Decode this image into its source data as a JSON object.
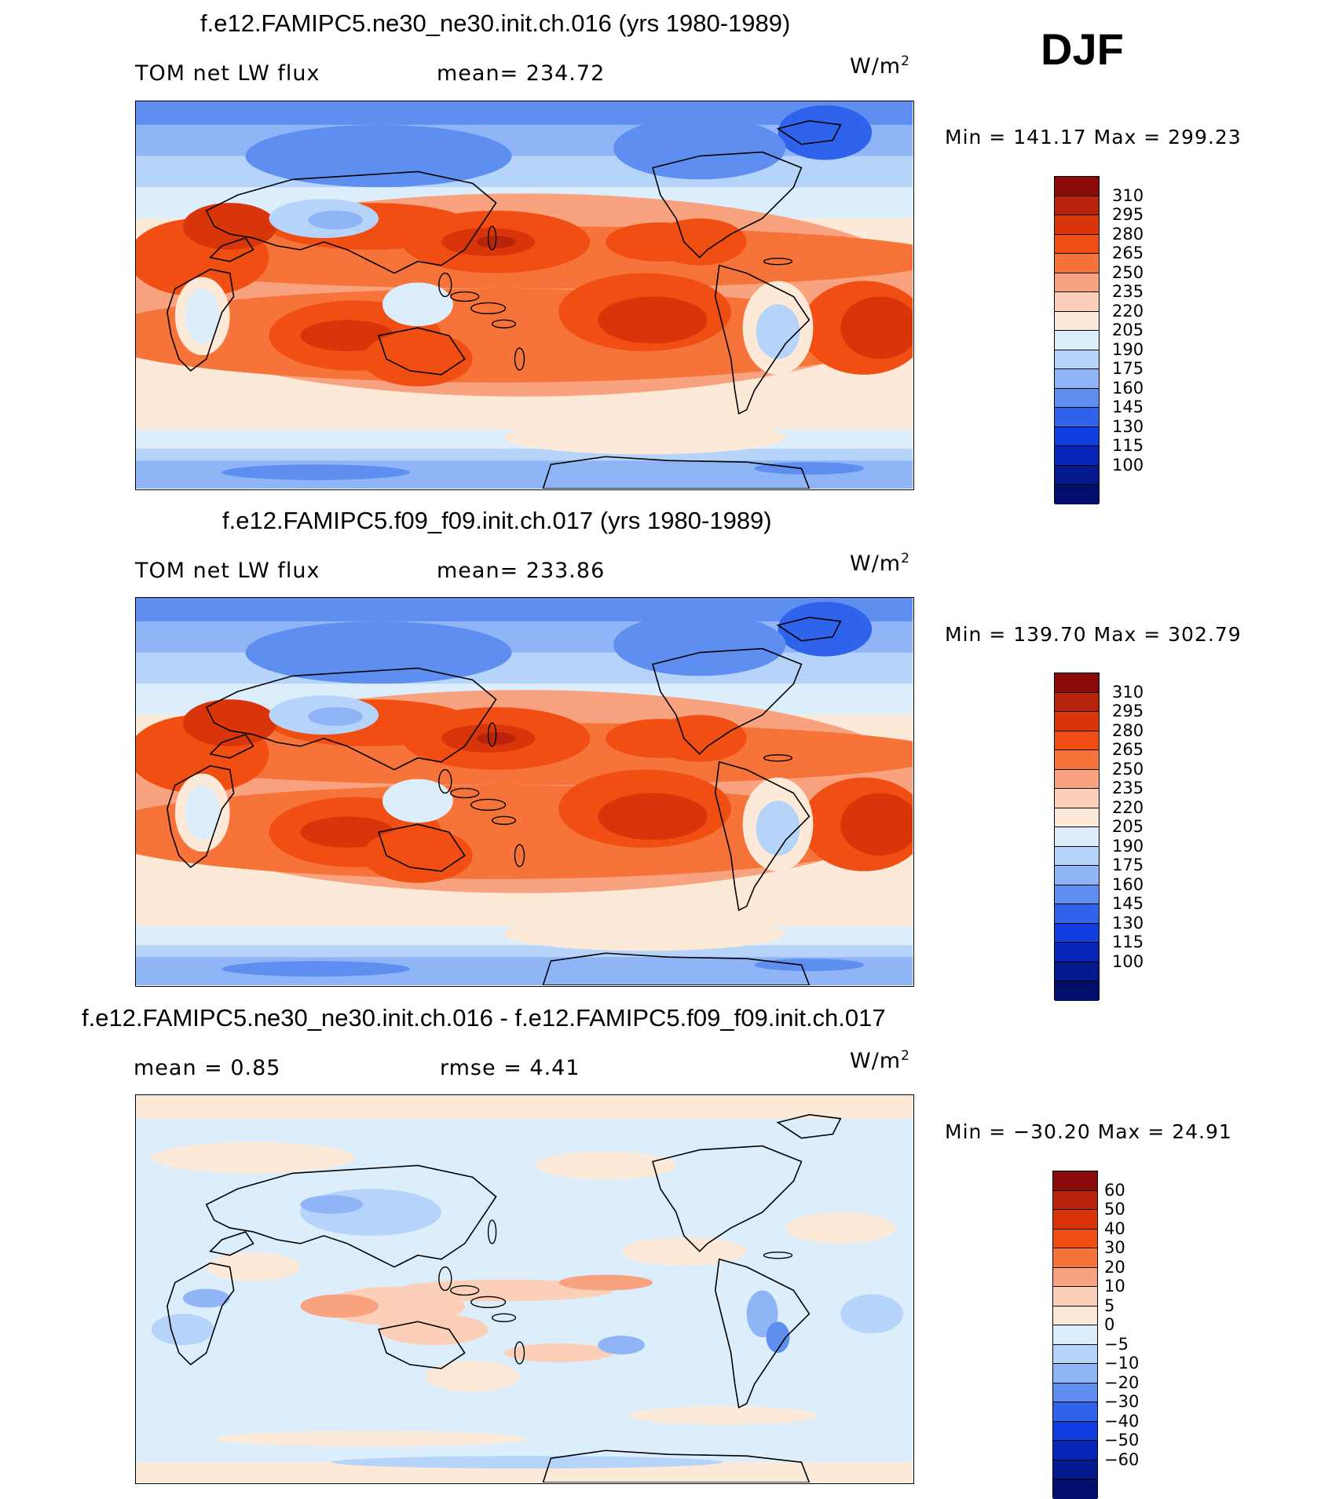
{
  "season": "DJF",
  "colors": {
    "abs_palette": [
      "#8b0a0a",
      "#b8230b",
      "#d9350b",
      "#f04e12",
      "#f6733a",
      "#f9a27f",
      "#fccfb8",
      "#fde9d8",
      "#dceefc",
      "#b6d3fa",
      "#8fb5f6",
      "#5f8ef1",
      "#3063ec",
      "#0f3ee0",
      "#0726b8",
      "#041a8e",
      "#020e6b"
    ],
    "diff_palette": [
      "#8b0a0a",
      "#b8230b",
      "#d9350b",
      "#f04e12",
      "#f6733a",
      "#f9a27f",
      "#fccfb8",
      "#fde9d8",
      "#dceefc",
      "#b6d3fa",
      "#8fb5f6",
      "#5f8ef1",
      "#3063ec",
      "#0f3ee0",
      "#0726b8",
      "#041a8e",
      "#020e6b"
    ]
  },
  "chart_data": [
    {
      "type": "heatmap",
      "title": "f.e12.FAMIPC5.ne30_ne30.init.ch.016 (yrs 1980-1989)",
      "variable": "TOM net LW flux",
      "mean_text": "mean= 234.72",
      "units": "W/m",
      "units_sup": "2",
      "min_max_text": "Min  =  141.17  Max  =  299.23",
      "min": 141.17,
      "max": 299.23,
      "colorbar_labels": [
        "310",
        "295",
        "280",
        "265",
        "250",
        "235",
        "220",
        "205",
        "190",
        "175",
        "160",
        "145",
        "130",
        "115",
        "100"
      ]
    },
    {
      "type": "heatmap",
      "title": "f.e12.FAMIPC5.f09_f09.init.ch.017 (yrs 1980-1989)",
      "variable": "TOM net LW flux",
      "mean_text": "mean= 233.86",
      "units": "W/m",
      "units_sup": "2",
      "min_max_text": "Min  =  139.70  Max  =  302.79",
      "min": 139.7,
      "max": 302.79,
      "colorbar_labels": [
        "310",
        "295",
        "280",
        "265",
        "250",
        "235",
        "220",
        "205",
        "190",
        "175",
        "160",
        "145",
        "130",
        "115",
        "100"
      ]
    },
    {
      "type": "heatmap",
      "title": "f.e12.FAMIPC5.ne30_ne30.init.ch.016 - f.e12.FAMIPC5.f09_f09.init.ch.017",
      "mean_text": "mean  =     0.85",
      "rmse_text": "rmse  =     4.41",
      "mean": 0.85,
      "rmse": 4.41,
      "units": "W/m",
      "units_sup": "2",
      "min_max_text": "Min  =  −30.20  Max  =    24.91",
      "min": -30.2,
      "max": 24.91,
      "colorbar_labels": [
        "60",
        "50",
        "40",
        "30",
        "20",
        "10",
        "5",
        "0",
        "−5",
        "−10",
        "−20",
        "−30",
        "−40",
        "−50",
        "−60"
      ]
    }
  ]
}
